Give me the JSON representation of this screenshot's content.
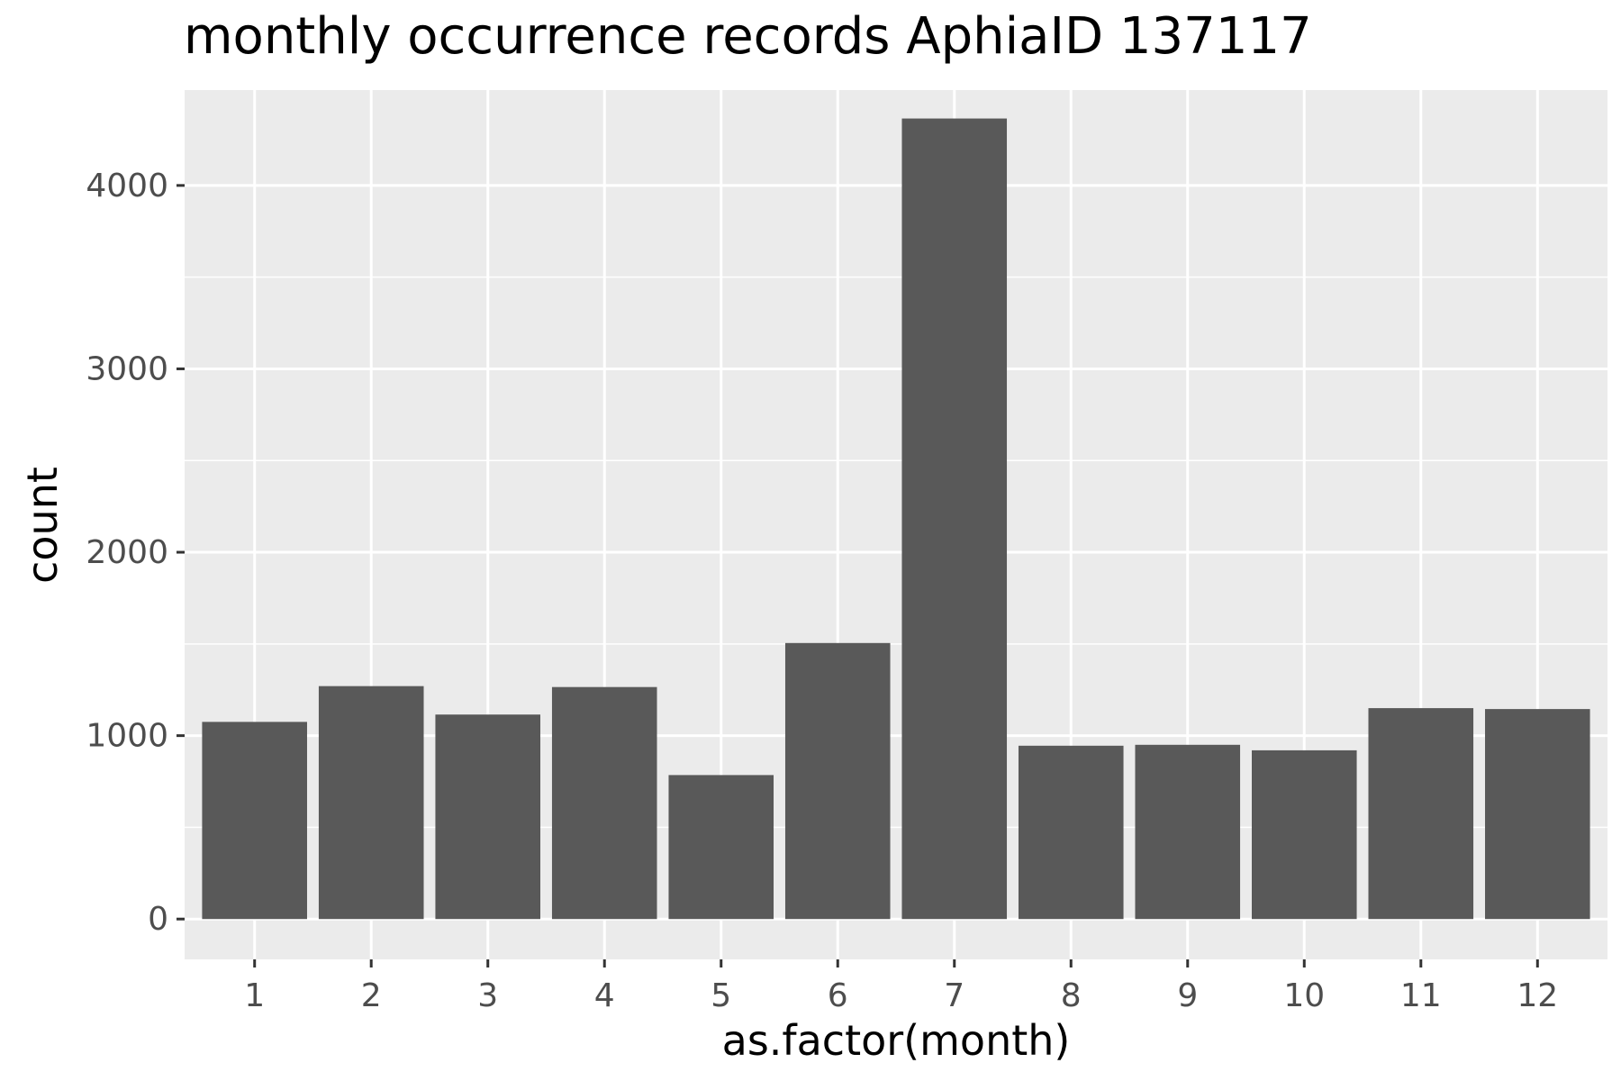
{
  "chart_data": {
    "type": "bar",
    "title": "monthly occurrence records AphiaID 137117",
    "xlabel": "as.factor(month)",
    "ylabel": "count",
    "categories": [
      "1",
      "2",
      "3",
      "4",
      "5",
      "6",
      "7",
      "8",
      "9",
      "10",
      "11",
      "12"
    ],
    "values": [
      1075,
      1270,
      1115,
      1265,
      785,
      1505,
      4365,
      945,
      950,
      920,
      1150,
      1145
    ],
    "ylim": [
      -220,
      4520
    ],
    "yticks": [
      0,
      1000,
      2000,
      3000,
      4000
    ],
    "ytick_labels": [
      "0",
      "1000",
      "2000",
      "3000",
      "4000"
    ],
    "grid": true,
    "colors": {
      "bar": "#595959",
      "panel": "#ebebeb",
      "grid": "#ffffff",
      "tick": "#333333",
      "tick_label": "#4d4d4d"
    }
  }
}
